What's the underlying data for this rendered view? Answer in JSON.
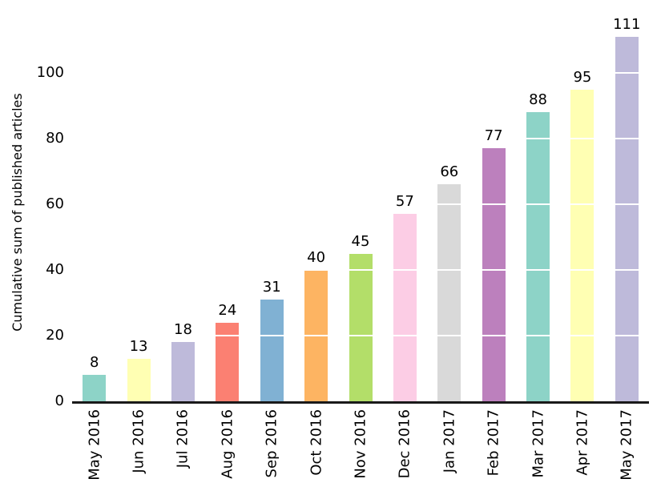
{
  "chart_data": {
    "type": "bar",
    "title": "",
    "xlabel": "",
    "ylabel": "Cumulative sum of published articles",
    "categories": [
      "May 2016",
      "Jun 2016",
      "Jul 2016",
      "Aug 2016",
      "Sep 2016",
      "Oct 2016",
      "Nov 2016",
      "Dec 2016",
      "Jan 2017",
      "Feb 2017",
      "Mar 2017",
      "Apr 2017",
      "May 2017"
    ],
    "values": [
      8,
      13,
      18,
      24,
      31,
      40,
      45,
      57,
      66,
      77,
      88,
      95,
      111
    ],
    "bar_colors": [
      "#8dd3c7",
      "#ffffb3",
      "#bebada",
      "#fb8072",
      "#80b1d3",
      "#fdb462",
      "#b3de69",
      "#fccde5",
      "#d9d9d9",
      "#bc80bd",
      "#8dd3c7",
      "#ffffb3",
      "#bebada"
    ],
    "yticks": [
      0,
      20,
      40,
      60,
      80,
      100
    ],
    "gridline_values": [
      20,
      40,
      60,
      80,
      100
    ],
    "ylim": [
      0,
      120
    ],
    "value_labels_shown": true,
    "legend": "none",
    "grid_color": "#ffffff",
    "axis_line_color": "#1a1a1a",
    "text_color": "#000000",
    "background_color": "#ffffff"
  }
}
